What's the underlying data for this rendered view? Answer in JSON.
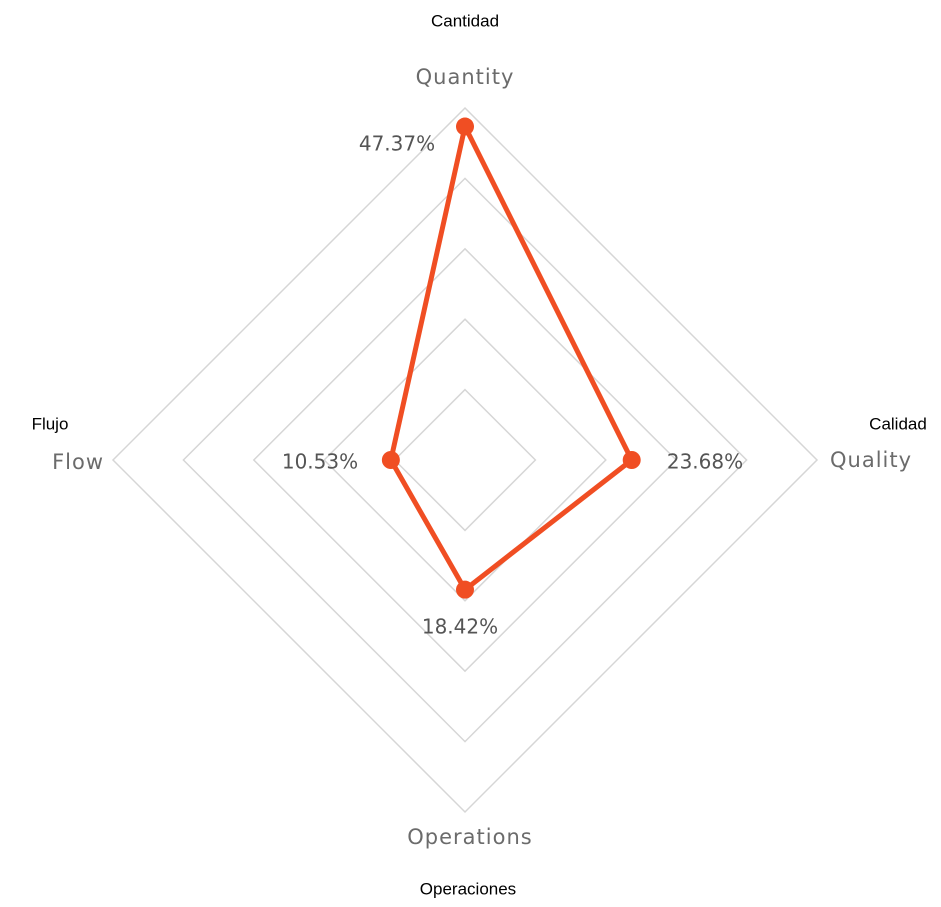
{
  "chart_data": {
    "type": "radar",
    "categories": [
      "Quantity",
      "Quality",
      "Operations",
      "Flow"
    ],
    "annotations": [
      "Cantidad",
      "Calidad",
      "Operaciones",
      "Flujo"
    ],
    "values": [
      47.37,
      23.68,
      18.42,
      10.53
    ],
    "value_labels": [
      "47.37%",
      "23.68%",
      "18.42%",
      "10.53%"
    ],
    "color": "#f04e23",
    "rlim": [
      0,
      50
    ],
    "rticks": [
      10,
      20,
      30,
      40,
      50
    ],
    "grid": true
  }
}
